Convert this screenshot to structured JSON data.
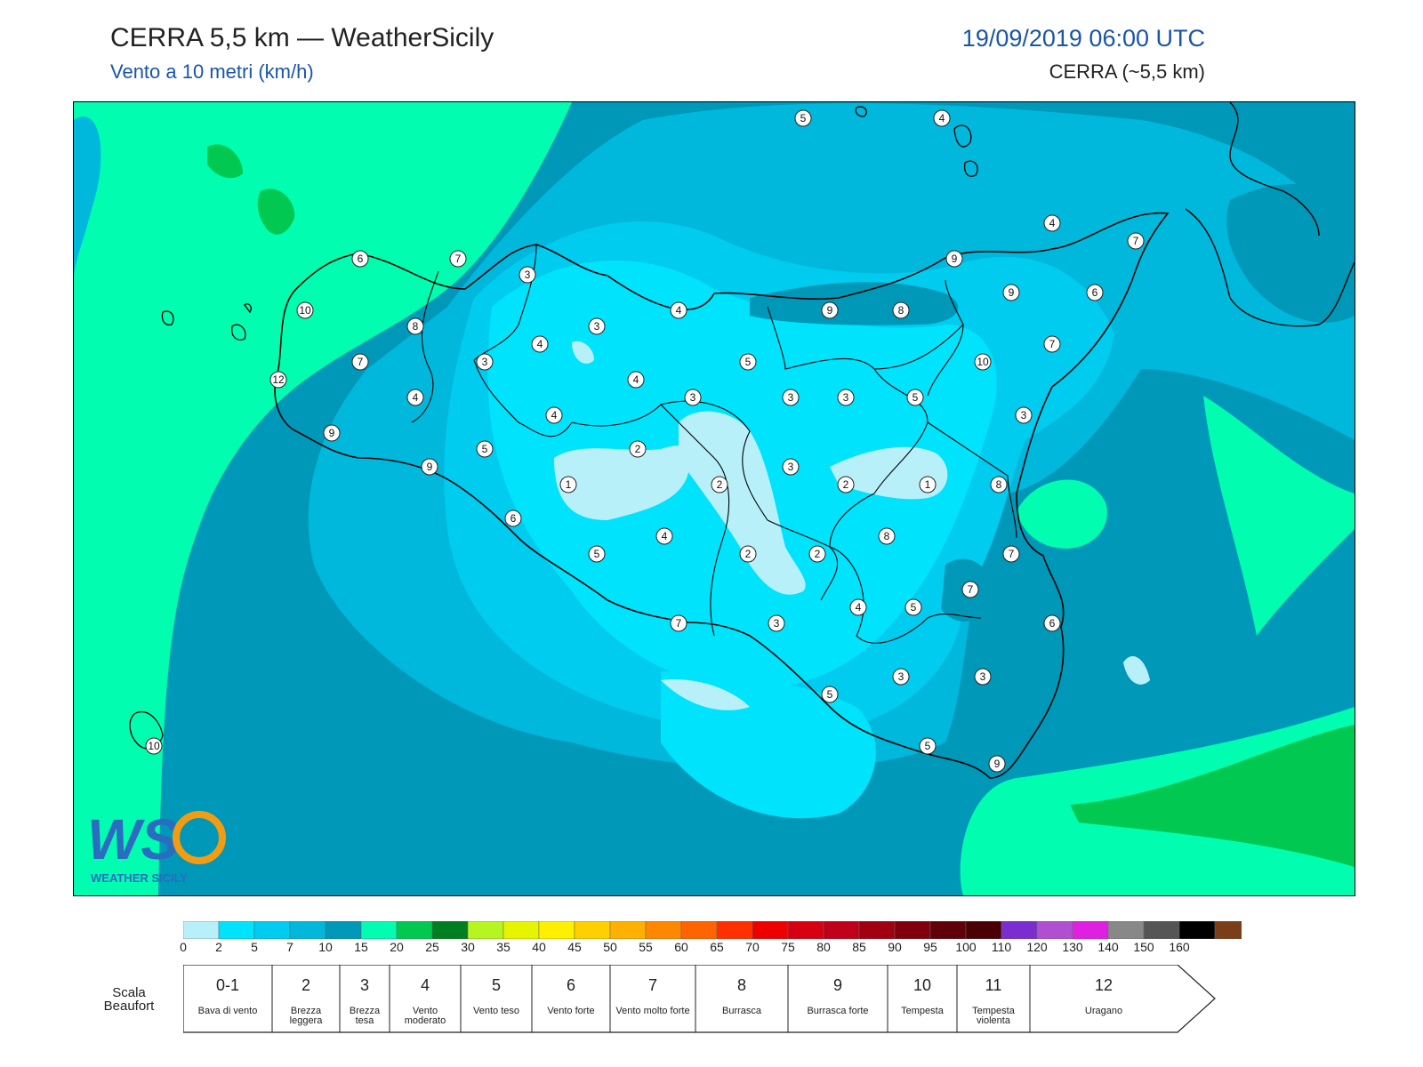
{
  "header": {
    "title": "CERRA 5,5 km — WeatherSicily",
    "subtitle": "Vento a 10 metri (km/h)",
    "datetime": "19/09/2019 06:00 UTC",
    "model": "CERRA (~5,5 km)"
  },
  "logo": {
    "text": "WEATHER SICILY",
    "icon": "weathersicily-ws-logo"
  },
  "colorbar": {
    "ticks": [
      "0",
      "2",
      "5",
      "7",
      "10",
      "15",
      "20",
      "25",
      "30",
      "35",
      "40",
      "45",
      "50",
      "55",
      "60",
      "65",
      "70",
      "75",
      "80",
      "85",
      "90",
      "95",
      "100",
      "110",
      "120",
      "130",
      "140",
      "150",
      "160"
    ],
    "colors": [
      "#b8f0fa",
      "#00e3fd",
      "#00ccf0",
      "#00b8dc",
      "#0098b8",
      "#00fdb0",
      "#00c850",
      "#007f20",
      "#b6f520",
      "#e5f500",
      "#fff000",
      "#ffd000",
      "#ffb000",
      "#ff8800",
      "#ff6400",
      "#ff3000",
      "#ee0000",
      "#d60010",
      "#c00018",
      "#a00010",
      "#80000c",
      "#600008",
      "#4a0004",
      "#7a2ed0",
      "#b050d0",
      "#e020e0",
      "#888888",
      "#555555",
      "#000000",
      "#7a3f18",
      "#c88850"
    ]
  },
  "beaufort": {
    "label": "Scala Beaufort",
    "classes": [
      {
        "num": "0-1",
        "desc": "Bava di vento"
      },
      {
        "num": "2",
        "desc": "Brezza leggera"
      },
      {
        "num": "3",
        "desc": "Brezza tesa"
      },
      {
        "num": "4",
        "desc": "Vento moderato"
      },
      {
        "num": "5",
        "desc": "Vento teso"
      },
      {
        "num": "6",
        "desc": "Vento forte"
      },
      {
        "num": "7",
        "desc": "Vento molto forte"
      },
      {
        "num": "8",
        "desc": "Burrasca"
      },
      {
        "num": "9",
        "desc": "Burrasca forte"
      },
      {
        "num": "10",
        "desc": "Tempesta"
      },
      {
        "num": "11",
        "desc": "Tempesta violenta"
      },
      {
        "num": "12",
        "desc": "Uragano"
      }
    ]
  },
  "stations": [
    {
      "v": "5"
    },
    {
      "v": "4"
    },
    {
      "v": "4"
    },
    {
      "v": "7"
    },
    {
      "v": "6"
    },
    {
      "v": "7"
    },
    {
      "v": "3"
    },
    {
      "v": "10"
    },
    {
      "v": "8"
    },
    {
      "v": "9"
    },
    {
      "v": "9"
    },
    {
      "v": "6"
    },
    {
      "v": "9"
    },
    {
      "v": "8"
    },
    {
      "v": "4"
    },
    {
      "v": "3"
    },
    {
      "v": "4"
    },
    {
      "v": "7"
    },
    {
      "v": "3"
    },
    {
      "v": "5"
    },
    {
      "v": "7"
    },
    {
      "v": "12"
    },
    {
      "v": "4"
    },
    {
      "v": "4"
    },
    {
      "v": "3"
    },
    {
      "v": "3"
    },
    {
      "v": "3"
    },
    {
      "v": "5"
    },
    {
      "v": "10"
    },
    {
      "v": "4"
    },
    {
      "v": "9"
    },
    {
      "v": "5"
    },
    {
      "v": "2"
    },
    {
      "v": "3"
    },
    {
      "v": "3"
    },
    {
      "v": "9"
    },
    {
      "v": "1"
    },
    {
      "v": "2"
    },
    {
      "v": "2"
    },
    {
      "v": "1"
    },
    {
      "v": "8"
    },
    {
      "v": "6"
    },
    {
      "v": "4"
    },
    {
      "v": "8"
    },
    {
      "v": "5"
    },
    {
      "v": "2"
    },
    {
      "v": "2"
    },
    {
      "v": "7"
    },
    {
      "v": "7"
    },
    {
      "v": "4"
    },
    {
      "v": "5"
    },
    {
      "v": "3"
    },
    {
      "v": "7"
    },
    {
      "v": "6"
    },
    {
      "v": "3"
    },
    {
      "v": "3"
    },
    {
      "v": "5"
    },
    {
      "v": "5"
    },
    {
      "v": "9"
    },
    {
      "v": "10"
    }
  ]
}
